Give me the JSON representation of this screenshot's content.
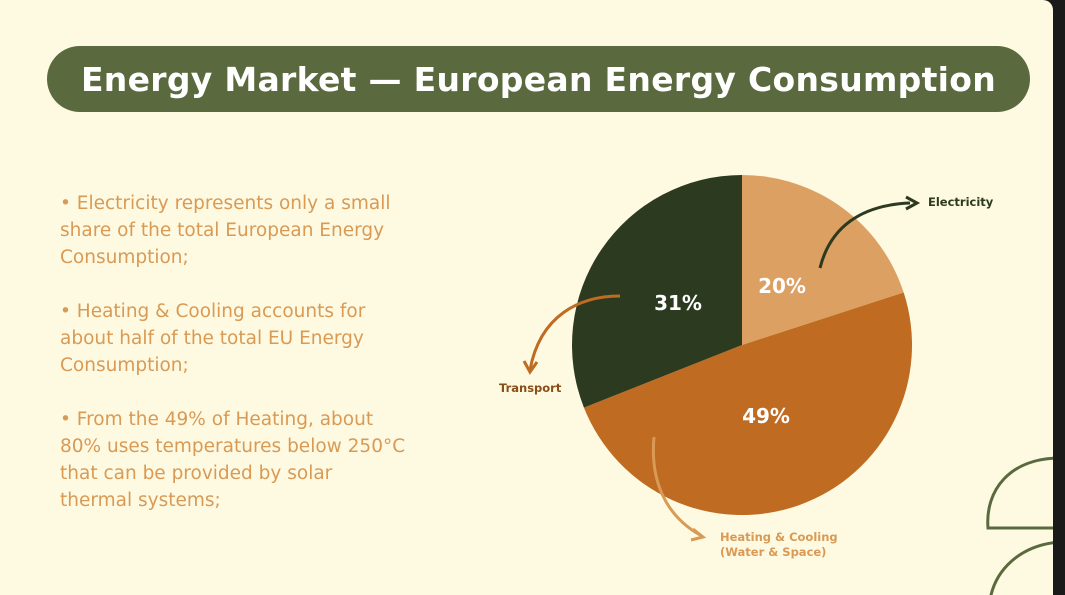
{
  "title": "Energy Market — European Energy Consumption",
  "bullets": [
    "• Electricity represents only a small\nshare of the total European Energy\nConsumption;",
    "• Heating & Cooling accounts for\nabout half of the total EU Energy\nConsumption;",
    " • From the 49% of Heating, about\n80% uses temperatures below 250°C\nthat can be provided by solar\nthermal systems;"
  ],
  "colors": {
    "background": "#FEF9E1",
    "title_bar": "#5A6A3E",
    "bullet_text": "#D89A55",
    "electricity": "#DCA062",
    "heating": "#BF6B22",
    "transport": "#2C3A20"
  },
  "chart_data": {
    "type": "pie",
    "slices": [
      {
        "key": "electricity",
        "label": "Electricity",
        "value": 20,
        "value_label": "20%",
        "color": "#DCA062"
      },
      {
        "key": "heating",
        "label": "Heating & Cooling\n(Water & Space)",
        "value": 49,
        "value_label": "49%",
        "color": "#BF6B22"
      },
      {
        "key": "transport",
        "label": "Transport",
        "value": 31,
        "value_label": "31%",
        "color": "#2C3A20"
      }
    ]
  }
}
